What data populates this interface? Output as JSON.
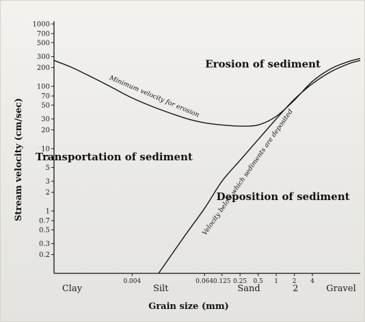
{
  "chart_data": {
    "type": "line",
    "title": "",
    "xlabel": "Grain size (mm)",
    "ylabel": "Stream velocity (cm/sec)",
    "y_scale": "log",
    "ylim": [
      0.1,
      1000
    ],
    "x_scale": "log",
    "xlim": [
      0.0002,
      25
    ],
    "grid": false,
    "y_ticks": [
      {
        "value": 1000,
        "label": "1000"
      },
      {
        "value": 700,
        "label": "700"
      },
      {
        "value": 500,
        "label": "500"
      },
      {
        "value": 300,
        "label": "300"
      },
      {
        "value": 200,
        "label": "200"
      },
      {
        "value": 100,
        "label": "100"
      },
      {
        "value": 70,
        "label": "70"
      },
      {
        "value": 50,
        "label": "50"
      },
      {
        "value": 30,
        "label": "30"
      },
      {
        "value": 20,
        "label": "20"
      },
      {
        "value": 10,
        "label": "10"
      },
      {
        "value": 7,
        "label": "7"
      },
      {
        "value": 5,
        "label": "5"
      },
      {
        "value": 3,
        "label": "3"
      },
      {
        "value": 2,
        "label": "2"
      },
      {
        "value": 1,
        "label": "1"
      },
      {
        "value": 0.7,
        "label": "0.7"
      },
      {
        "value": 0.5,
        "label": "0.5"
      },
      {
        "value": 0.3,
        "label": "0.3"
      },
      {
        "value": 0.2,
        "label": "0.2"
      }
    ],
    "x_ticks": [
      {
        "value": 0.0004,
        "label": "Clay",
        "size": "big"
      },
      {
        "value": 0.004,
        "label": "0.004",
        "size": "small"
      },
      {
        "value": 0.012,
        "label": "Silt",
        "size": "big"
      },
      {
        "value": 0.064,
        "label": "0.064",
        "size": "small"
      },
      {
        "value": 0.125,
        "label": "0.125",
        "size": "small"
      },
      {
        "value": 0.25,
        "label": "0.25",
        "size": "small"
      },
      {
        "value": 0.35,
        "label": "Sand",
        "size": "big"
      },
      {
        "value": 0.5,
        "label": "0.5",
        "size": "small"
      },
      {
        "value": 1,
        "label": "1",
        "size": "small"
      },
      {
        "value": 2,
        "label": "2",
        "size": "small"
      },
      {
        "value": 2.1,
        "label": "2",
        "size": "big"
      },
      {
        "value": 4,
        "label": "4",
        "size": "small"
      },
      {
        "value": 12,
        "label": "Gravel",
        "size": "big"
      }
    ],
    "series": [
      {
        "name": "Minimum velocity for erosion",
        "points": [
          [
            0.0002,
            260
          ],
          [
            0.0004,
            200
          ],
          [
            0.001,
            130
          ],
          [
            0.002,
            92
          ],
          [
            0.004,
            65
          ],
          [
            0.01,
            45
          ],
          [
            0.03,
            31
          ],
          [
            0.064,
            26
          ],
          [
            0.125,
            24
          ],
          [
            0.25,
            23
          ],
          [
            0.5,
            24
          ],
          [
            1,
            33
          ],
          [
            2,
            60
          ],
          [
            4,
            120
          ],
          [
            8,
            190
          ],
          [
            16,
            250
          ],
          [
            25,
            280
          ]
        ]
      },
      {
        "name": "Velocity below which sediments are deposited",
        "points": [
          [
            0.011,
            0.1
          ],
          [
            0.03,
            0.4
          ],
          [
            0.064,
            1.1
          ],
          [
            0.125,
            3
          ],
          [
            0.25,
            6.5
          ],
          [
            0.5,
            14
          ],
          [
            1,
            30
          ],
          [
            2,
            62
          ],
          [
            4,
            110
          ],
          [
            8,
            170
          ],
          [
            16,
            230
          ],
          [
            25,
            260
          ]
        ]
      }
    ],
    "annotations": [
      {
        "text": "Erosion of sediment",
        "x": 0.6,
        "y": 200
      },
      {
        "text": "Transportation of sediment",
        "x": 0.002,
        "y": 6.5
      },
      {
        "text": "Deposition of sediment",
        "x": 1.3,
        "y": 1.5
      }
    ]
  }
}
